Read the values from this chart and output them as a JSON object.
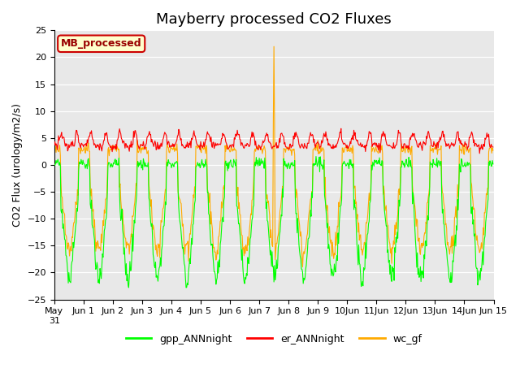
{
  "title": "Mayberry processed CO2 Fluxes",
  "ylabel": "CO2 Flux (urology/m2/s)",
  "ylim": [
    -25,
    25
  ],
  "yticks": [
    -25,
    -20,
    -15,
    -10,
    -5,
    0,
    5,
    10,
    15,
    20,
    25
  ],
  "outer_bg": "#ffffff",
  "plot_bg": "#e8e8e8",
  "grid_color": "#ffffff",
  "legend_label": "MB_processed",
  "legend_box_facecolor": "#ffffcc",
  "legend_box_edgecolor": "#cc0000",
  "series_labels": [
    "gpp_ANNnight",
    "er_ANNnight",
    "wc_gf"
  ],
  "series_colors": [
    "#00ff00",
    "#ff0000",
    "#ffaa00"
  ],
  "line_width": 0.8,
  "title_fontsize": 13,
  "axis_label_fontsize": 9,
  "tick_fontsize": 8,
  "legend_fontsize": 9
}
